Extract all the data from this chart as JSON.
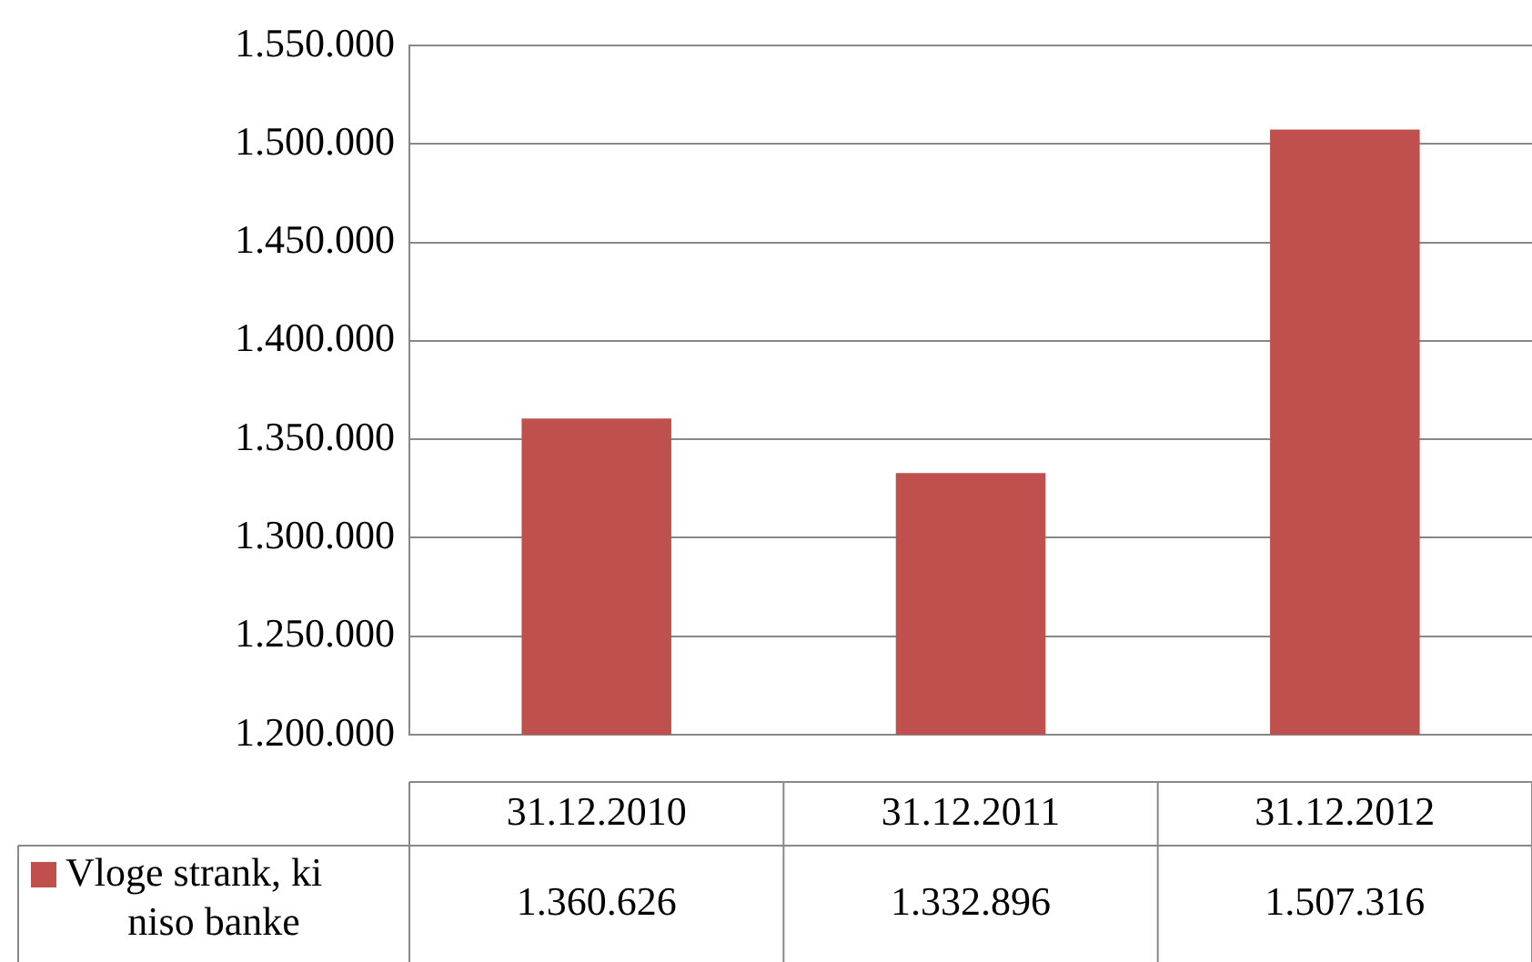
{
  "chart_data": {
    "type": "bar",
    "categories": [
      "31.12.2010",
      "31.12.2011",
      "31.12.2012"
    ],
    "series": [
      {
        "name": "Vloge strank, ki niso banke",
        "color": "#c0504d",
        "values": [
          1360626,
          1332896,
          1507316
        ],
        "value_labels": [
          "1.360.626",
          "1.332.896",
          "1.507.316"
        ]
      }
    ],
    "ylim": [
      1200000,
      1550000
    ],
    "yticks": [
      {
        "value": 1200000,
        "label": "1.200.000"
      },
      {
        "value": 1250000,
        "label": "1.250.000"
      },
      {
        "value": 1300000,
        "label": "1.300.000"
      },
      {
        "value": 1350000,
        "label": "1.350.000"
      },
      {
        "value": 1400000,
        "label": "1.400.000"
      },
      {
        "value": 1450000,
        "label": "1.450.000"
      },
      {
        "value": 1500000,
        "label": "1.500.000"
      },
      {
        "value": 1550000,
        "label": "1.550.000"
      }
    ],
    "grid": "y",
    "legend": "bottom"
  }
}
